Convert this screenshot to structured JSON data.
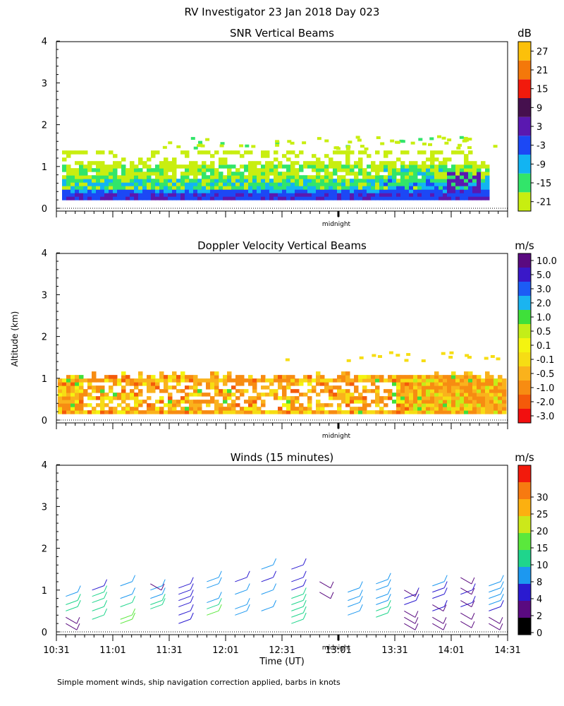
{
  "figure": {
    "title": "RV Investigator  23 Jan 2018 Day 023",
    "ylabel": "Altitude (km)",
    "xlabel": "Time (UT)",
    "footnote": "Simple moment winds, ship navigation correction applied, barbs in knots"
  },
  "chart_data": [
    {
      "type": "heatmap",
      "title": "SNR Vertical Beams",
      "unit": "dB",
      "ylim": [
        0,
        4.1
      ],
      "yticks": [
        0,
        1,
        2,
        3,
        4
      ],
      "xlim": [
        "10:31",
        "14:31"
      ],
      "x_marker": "midnight",
      "colorbar": {
        "labels": [
          "-21",
          "-15",
          "-9",
          "-3",
          "3",
          "9",
          "15",
          "21",
          "27"
        ],
        "colors": [
          "#c8ee10",
          "#32e56a",
          "#12b4f2",
          "#1c48f5",
          "#5a18b0",
          "#46104e",
          "#f21a0c",
          "#f4780a",
          "#fcc00a"
        ]
      },
      "description_layers": [
        {
          "altitude_km": [
            0.2,
            0.35
          ],
          "value_db": 5
        },
        {
          "altitude_km": [
            0.35,
            0.6
          ],
          "value_db": -6
        },
        {
          "altitude_km": [
            0.6,
            0.9
          ],
          "value_db": -14
        },
        {
          "altitude_km": [
            0.9,
            1.3
          ],
          "value_db": -20
        }
      ]
    },
    {
      "type": "heatmap",
      "title": "Doppler Velocity Vertical Beams",
      "unit": "m/s",
      "ylim": [
        0,
        4.1
      ],
      "yticks": [
        0,
        1,
        2,
        3,
        4
      ],
      "xlim": [
        "10:31",
        "14:31"
      ],
      "x_marker": "midnight",
      "colorbar": {
        "labels": [
          "-3.0",
          "-2.0",
          "-1.0",
          "-0.5",
          "-0.1",
          "0.1",
          "0.5",
          "1.0",
          "2.0",
          "3.0",
          "5.0",
          "10.0"
        ],
        "colors": [
          "#f20f0f",
          "#f45a0a",
          "#f78c12",
          "#fab21c",
          "#f6dd14",
          "#f4f410",
          "#c3ee18",
          "#3fe03a",
          "#1ab4f0",
          "#1c5cf5",
          "#3a18c8",
          "#5a0a80"
        ]
      },
      "data_range_km": [
        0.2,
        1.1
      ]
    },
    {
      "type": "scatter",
      "title": "Winds (15 minutes)",
      "unit": "m/s",
      "ylim": [
        0,
        4.1
      ],
      "yticks": [
        0,
        1,
        2,
        3,
        4
      ],
      "xticks": [
        "10:31",
        "11:01",
        "11:31",
        "12:01",
        "12:31",
        "13:01",
        "13:31",
        "14:01",
        "14:31"
      ],
      "x_marker": "midnight",
      "colorbar": {
        "labels": [
          "0",
          "2",
          "4",
          "8",
          "10",
          "15",
          "20",
          "25",
          "30"
        ],
        "colors": [
          "#000000",
          "#5a0a80",
          "#2a1ad0",
          "#1c98f0",
          "#1fd58c",
          "#5ae83c",
          "#cce81a",
          "#fcb010",
          "#f77a10",
          "#f21a0c"
        ]
      },
      "wind_profiles": [
        {
          "time": "10:36",
          "altitudes_km": [
            0.2,
            0.35,
            0.5,
            0.65,
            0.85
          ],
          "speeds_ms": [
            2,
            3,
            10,
            12,
            9
          ]
        },
        {
          "time": "10:50",
          "altitudes_km": [
            0.3,
            0.5,
            0.7,
            0.85,
            1.0
          ],
          "speeds_ms": [
            14,
            12,
            10,
            10,
            6
          ]
        },
        {
          "time": "11:05",
          "altitudes_km": [
            0.2,
            0.3,
            0.6,
            0.8,
            1.1
          ],
          "speeds_ms": [
            16,
            15,
            10,
            9,
            9
          ]
        },
        {
          "time": "11:21",
          "altitudes_km": [
            0.55,
            0.65,
            0.8,
            1.0,
            1.15
          ],
          "speeds_ms": [
            12,
            12,
            9,
            9,
            3
          ]
        },
        {
          "time": "11:36",
          "altitudes_km": [
            0.2,
            0.4,
            0.6,
            0.75,
            0.9,
            1.05
          ],
          "speeds_ms": [
            6,
            7,
            5,
            4,
            4,
            4
          ]
        },
        {
          "time": "11:51",
          "altitudes_km": [
            0.4,
            0.55,
            0.7,
            1.05,
            1.2
          ],
          "speeds_ms": [
            18,
            12,
            9,
            9,
            9
          ]
        },
        {
          "time": "12:06",
          "altitudes_km": [
            0.4,
            0.55,
            0.9,
            1.2
          ],
          "speeds_ms": [
            8,
            8,
            8,
            4
          ]
        },
        {
          "time": "12:20",
          "altitudes_km": [
            0.5,
            0.9,
            1.2,
            1.5
          ],
          "speeds_ms": [
            8,
            8,
            4,
            8
          ]
        },
        {
          "time": "12:36",
          "altitudes_km": [
            0.2,
            0.35,
            0.5,
            0.65,
            0.8,
            1.0,
            1.2,
            1.5
          ],
          "speeds_ms": [
            14,
            12,
            10,
            10,
            12,
            6,
            4,
            4
          ]
        },
        {
          "time": "12:51",
          "altitudes_km": [
            0.95,
            1.2
          ],
          "speeds_ms": [
            2,
            2
          ]
        },
        {
          "time": "13:06",
          "altitudes_km": [
            0.4,
            0.6,
            0.75,
            0.95
          ],
          "speeds_ms": [
            8,
            8,
            8,
            8
          ]
        },
        {
          "time": "13:21",
          "altitudes_km": [
            0.35,
            0.5,
            0.65,
            0.8,
            1.0,
            1.15
          ],
          "speeds_ms": [
            10,
            10,
            8,
            8,
            8,
            8
          ]
        },
        {
          "time": "13:36",
          "altitudes_km": [
            0.2,
            0.35,
            0.5,
            0.65,
            0.8,
            1.0
          ],
          "speeds_ms": [
            2,
            2,
            3,
            4,
            4,
            3
          ]
        },
        {
          "time": "13:51",
          "altitudes_km": [
            0.2,
            0.35,
            0.5,
            0.65,
            0.8,
            0.95,
            1.1
          ],
          "speeds_ms": [
            2,
            3,
            4,
            3,
            4,
            4,
            8
          ]
        },
        {
          "time": "14:06",
          "altitudes_km": [
            0.25,
            0.45,
            0.6,
            0.75,
            0.9,
            1.05,
            1.3
          ],
          "speeds_ms": [
            2,
            2,
            4,
            3,
            4,
            3,
            3
          ]
        },
        {
          "time": "14:21",
          "altitudes_km": [
            0.2,
            0.35,
            0.5,
            0.65,
            0.8,
            0.95,
            1.1
          ],
          "speeds_ms": [
            3,
            3,
            4,
            8,
            8,
            8,
            8
          ]
        }
      ]
    }
  ]
}
